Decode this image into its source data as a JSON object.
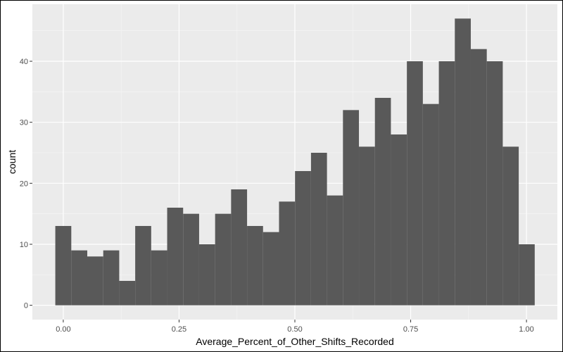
{
  "chart_data": {
    "type": "bar",
    "histogram": true,
    "xlabel": "Average_Percent_of_Other_Shifts_Recorded",
    "ylabel": "count",
    "xlim": [
      -0.0667,
      1.0667
    ],
    "ylim": [
      -2.35,
      49.35
    ],
    "x_ticks": [
      0.0,
      0.25,
      0.5,
      0.75,
      1.0
    ],
    "x_tick_labels": [
      "0.00",
      "0.25",
      "0.50",
      "0.75",
      "1.00"
    ],
    "y_ticks": [
      0,
      10,
      20,
      30,
      40
    ],
    "y_tick_labels": [
      "0",
      "10",
      "20",
      "30",
      "40"
    ],
    "bin_width": 0.0345,
    "bin_start": -0.0172,
    "values": [
      13,
      9,
      8,
      9,
      4,
      13,
      9,
      16,
      15,
      10,
      15,
      19,
      13,
      12,
      17,
      22,
      25,
      18,
      32,
      26,
      34,
      28,
      40,
      33,
      40,
      47,
      42,
      40,
      26,
      10
    ],
    "grid": true,
    "panel_background": "#ebebeb",
    "bar_color": "#595959",
    "grid_major_color": "#ffffff",
    "grid_minor_color": "#f5f5f5"
  }
}
